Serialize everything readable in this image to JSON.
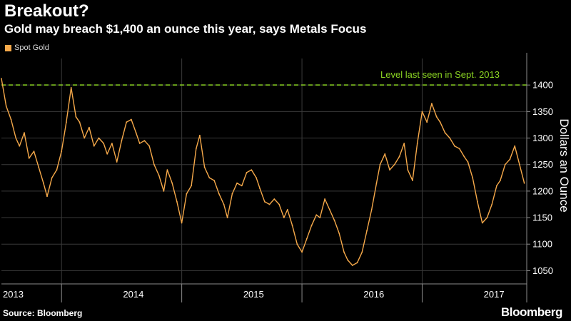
{
  "header": {
    "title": "Breakout?",
    "subtitle": "Gold may breach $1,400 an ounce this year, says Metals Focus"
  },
  "footer": {
    "source": "Source: Bloomberg",
    "logo": "Bloomberg"
  },
  "colors": {
    "background": "#000000",
    "series": "#f6a94a",
    "reference_line": "#8cd623",
    "axis": "#8c8c8c",
    "grid": "#3a3a3a",
    "text": "#ffffff"
  },
  "chart_data": {
    "type": "line",
    "title": "Breakout?",
    "subtitle": "Gold may breach $1,400 an ounce this year, says Metals Focus",
    "xlabel": "",
    "ylabel": "Dollars an Ounce",
    "ylim": [
      1025,
      1450
    ],
    "xlim": [
      2013.0,
      2017.37
    ],
    "yticks": [
      1050,
      1100,
      1150,
      1200,
      1250,
      1300,
      1350,
      1400
    ],
    "grid": true,
    "legend_position": "top-left",
    "x_labels": [
      {
        "label": "2013",
        "x": 2013.0
      },
      {
        "label": "2014",
        "x": 2014.0
      },
      {
        "label": "2015",
        "x": 2015.0
      },
      {
        "label": "2016",
        "x": 2016.0
      },
      {
        "label": "2017",
        "x": 2017.0
      }
    ],
    "x_boundaries": [
      2013.5,
      2014.5,
      2015.5,
      2016.5
    ],
    "reference_line": {
      "value": 1400,
      "label": "Level last seen in Sept. 2013",
      "style": "dashed"
    },
    "series": [
      {
        "name": "Spot Gold",
        "x": [
          2013.0,
          2013.04,
          2013.08,
          2013.12,
          2013.15,
          2013.19,
          2013.23,
          2013.27,
          2013.31,
          2013.35,
          2013.38,
          2013.42,
          2013.46,
          2013.5,
          2013.54,
          2013.58,
          2013.62,
          2013.65,
          2013.69,
          2013.73,
          2013.77,
          2013.81,
          2013.85,
          2013.88,
          2013.92,
          2013.96,
          2014.0,
          2014.04,
          2014.08,
          2014.12,
          2014.15,
          2014.19,
          2014.23,
          2014.27,
          2014.31,
          2014.35,
          2014.38,
          2014.42,
          2014.46,
          2014.5,
          2014.54,
          2014.58,
          2014.62,
          2014.65,
          2014.69,
          2014.73,
          2014.77,
          2014.81,
          2014.85,
          2014.88,
          2014.92,
          2014.96,
          2015.0,
          2015.04,
          2015.08,
          2015.12,
          2015.15,
          2015.19,
          2015.23,
          2015.27,
          2015.31,
          2015.35,
          2015.38,
          2015.42,
          2015.46,
          2015.5,
          2015.54,
          2015.58,
          2015.62,
          2015.65,
          2015.69,
          2015.73,
          2015.77,
          2015.81,
          2015.85,
          2015.88,
          2015.92,
          2015.96,
          2016.0,
          2016.04,
          2016.08,
          2016.12,
          2016.15,
          2016.19,
          2016.23,
          2016.27,
          2016.31,
          2016.35,
          2016.38,
          2016.42,
          2016.46,
          2016.5,
          2016.54,
          2016.58,
          2016.62,
          2016.65,
          2016.69,
          2016.73,
          2016.77,
          2016.81,
          2016.85,
          2016.88,
          2016.92,
          2016.96,
          2017.0,
          2017.04,
          2017.08,
          2017.12,
          2017.15,
          2017.19,
          2017.23,
          2017.27,
          2017.31,
          2017.35
        ],
        "values": [
          1412,
          1360,
          1335,
          1300,
          1285,
          1310,
          1262,
          1275,
          1245,
          1215,
          1190,
          1225,
          1240,
          1275,
          1330,
          1395,
          1340,
          1330,
          1300,
          1320,
          1285,
          1300,
          1290,
          1270,
          1290,
          1255,
          1295,
          1330,
          1335,
          1310,
          1290,
          1295,
          1285,
          1250,
          1230,
          1200,
          1240,
          1215,
          1180,
          1140,
          1195,
          1210,
          1280,
          1305,
          1245,
          1225,
          1220,
          1195,
          1175,
          1150,
          1195,
          1215,
          1210,
          1235,
          1240,
          1225,
          1205,
          1180,
          1175,
          1185,
          1175,
          1150,
          1165,
          1135,
          1100,
          1085,
          1110,
          1135,
          1155,
          1150,
          1185,
          1165,
          1145,
          1120,
          1085,
          1070,
          1060,
          1065,
          1085,
          1125,
          1165,
          1215,
          1250,
          1270,
          1240,
          1250,
          1265,
          1290,
          1240,
          1220,
          1290,
          1350,
          1330,
          1365,
          1340,
          1330,
          1310,
          1300,
          1285,
          1280,
          1265,
          1255,
          1225,
          1180,
          1140,
          1150,
          1175,
          1210,
          1220,
          1250,
          1260,
          1285,
          1250,
          1215
        ]
      }
    ]
  }
}
